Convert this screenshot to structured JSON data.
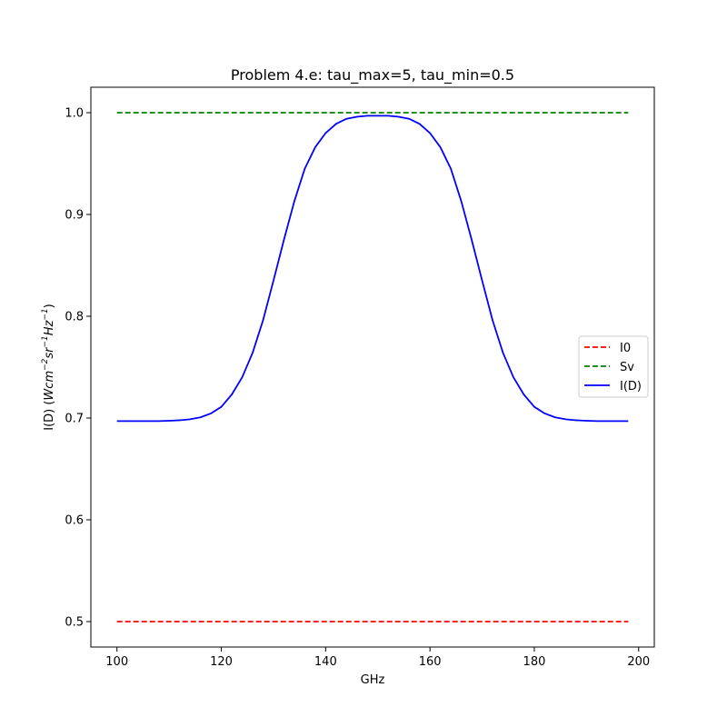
{
  "chart_data": {
    "type": "line",
    "title": "Problem 4.e: tau_max=5, tau_min=0.5",
    "xlabel": "GHz",
    "ylabel": {
      "parts": [
        "I(D) (",
        "Wcm",
        "−2",
        "sr",
        "−1",
        "Hz",
        "−1",
        ")"
      ]
    },
    "xlim": [
      95,
      203
    ],
    "ylim": [
      0.475,
      1.025
    ],
    "xticks": [
      100,
      120,
      140,
      160,
      180,
      200
    ],
    "yticks": [
      0.5,
      0.6,
      0.7,
      0.8,
      0.9,
      1.0
    ],
    "xtick_labels": [
      "100",
      "120",
      "140",
      "160",
      "180",
      "200"
    ],
    "ytick_labels": [
      "0.5",
      "0.6",
      "0.7",
      "0.8",
      "0.9",
      "1.0"
    ],
    "grid": false,
    "legend_position": "center-right",
    "series": [
      {
        "name": "I0",
        "color": "#ff0000",
        "style": "dashed",
        "x": [
          100,
          198
        ],
        "y": [
          0.5,
          0.5
        ]
      },
      {
        "name": "Sv",
        "color": "#008000",
        "style": "dashed",
        "x": [
          100,
          198
        ],
        "y": [
          1.0,
          1.0
        ]
      },
      {
        "name": "I(D)",
        "color": "#0000ff",
        "style": "solid",
        "x": [
          100,
          102,
          104,
          106,
          108,
          110,
          112,
          114,
          116,
          118,
          120,
          122,
          124,
          126,
          128,
          130,
          132,
          134,
          136,
          138,
          140,
          142,
          144,
          146,
          148,
          150,
          152,
          154,
          156,
          158,
          160,
          162,
          164,
          166,
          168,
          170,
          172,
          174,
          176,
          178,
          180,
          182,
          184,
          186,
          188,
          190,
          192,
          194,
          196,
          198
        ],
        "y": [
          0.697,
          0.697,
          0.697,
          0.697,
          0.697,
          0.6973,
          0.6978,
          0.6988,
          0.7007,
          0.7045,
          0.711,
          0.723,
          0.74,
          0.764,
          0.796,
          0.835,
          0.875,
          0.913,
          0.945,
          0.966,
          0.98,
          0.989,
          0.994,
          0.996,
          0.997,
          0.997,
          0.997,
          0.996,
          0.994,
          0.989,
          0.98,
          0.966,
          0.945,
          0.913,
          0.875,
          0.835,
          0.796,
          0.764,
          0.74,
          0.723,
          0.711,
          0.7045,
          0.7007,
          0.6988,
          0.6978,
          0.6973,
          0.697,
          0.697,
          0.697,
          0.697
        ]
      }
    ]
  }
}
